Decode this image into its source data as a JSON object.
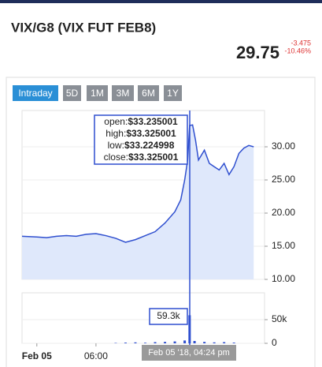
{
  "header": {
    "title": "VIX/G8 (VIX FUT FEB8)",
    "price": "29.75",
    "change": "-3.475",
    "change_percent": "-10.46%"
  },
  "tabs": [
    "Intraday",
    "5D",
    "1M",
    "3M",
    "6M",
    "1Y"
  ],
  "chart_data": [
    {
      "type": "line",
      "name": "price",
      "color": "#2f4fcf",
      "fill": "#dfe8fb",
      "x": [
        -1.5,
        0,
        1,
        2,
        3,
        4,
        5,
        6,
        7,
        8,
        9,
        10,
        11,
        12,
        13,
        14,
        14.6,
        15,
        15.3,
        15.5,
        15.8,
        16.1,
        16.4,
        17,
        17.5,
        18,
        18.5,
        19,
        19.5,
        20,
        20.5,
        21,
        21.5,
        22
      ],
      "values": [
        16.5,
        16.4,
        16.3,
        16.5,
        16.6,
        16.5,
        16.8,
        16.9,
        16.6,
        16.2,
        15.6,
        16.0,
        16.6,
        17.2,
        18.5,
        20.2,
        22,
        25,
        28,
        33.2,
        33.3,
        31,
        28,
        29.5,
        27.5,
        27,
        26.5,
        27.5,
        25.8,
        27,
        29,
        29.8,
        30.2,
        30.0
      ],
      "xlim": [
        -1.5,
        23.1
      ],
      "ylim": [
        10,
        35
      ],
      "yticks": [
        {
          "value": 10,
          "label": "10.00"
        },
        {
          "value": 15,
          "label": "15.00"
        },
        {
          "value": 20,
          "label": "20.00"
        },
        {
          "value": 25,
          "label": "25.00"
        },
        {
          "value": 30,
          "label": "30.00"
        }
      ],
      "tooltip": [
        {
          "label": "open:",
          "value": "$33.235001"
        },
        {
          "label": "high:",
          "value": "$33.325001"
        },
        {
          "label": "low:",
          "value": "$33.224998"
        },
        {
          "label": "close:",
          "value": "$33.325001"
        }
      ]
    },
    {
      "type": "bar",
      "name": "volume",
      "color": "#2f4fcf",
      "x": [
        8,
        9,
        10,
        11,
        12,
        13,
        14,
        15,
        15.5,
        16,
        17,
        18,
        19,
        20
      ],
      "values": [
        800,
        1500,
        2000,
        1200,
        2500,
        3000,
        4000,
        6000,
        59300,
        5000,
        3000,
        2000,
        2500,
        1500
      ],
      "xlim": [
        -1.5,
        23.1
      ],
      "ylim": [
        0,
        100000
      ],
      "yticks": [
        0,
        {
          "value": 50000,
          "label": "50k"
        }
      ],
      "xticks": [
        {
          "value": 0,
          "label": "Feb 05"
        },
        {
          "value": 6,
          "label": "06:00"
        }
      ],
      "tooltip_label": "59.3k",
      "cursor_label": "Feb 05 '18, 04:24 pm"
    }
  ]
}
